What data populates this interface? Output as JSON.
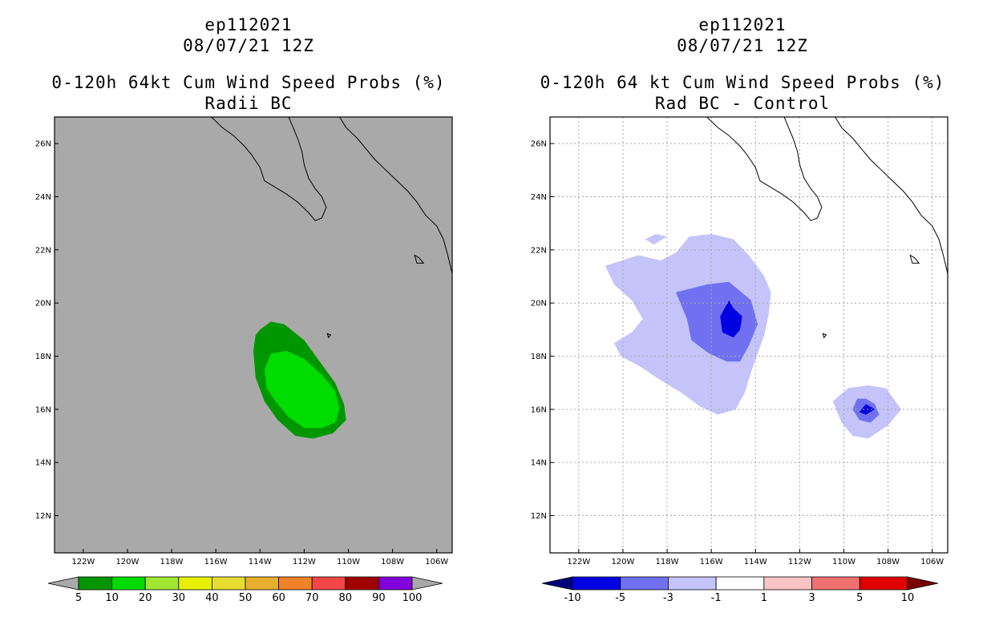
{
  "colors": {
    "left_bg": "#a9a9a9",
    "prob_10": "#009600",
    "prob_20": "#00dc00",
    "diff_weak": "#c4c4fa",
    "diff_mid": "#7070f0",
    "diff_strong": "#0000e0",
    "coast": "#000000",
    "grid": "#a8a8a8"
  },
  "chart_data": [
    {
      "type": "contour-map",
      "title_line1": "ep112021",
      "title_line2": "08/07/21 12Z",
      "title_line3": "0-120h 64kt Cum Wind Speed Probs (%)",
      "title_line4": "Radii BC",
      "xlim": [
        -123.3,
        -105.3
      ],
      "ylim": [
        10.6,
        27.0
      ],
      "x_ticks": [
        -122,
        -120,
        -118,
        -116,
        -114,
        -112,
        -110,
        -108,
        -106
      ],
      "x_tick_labels": [
        "122W",
        "120W",
        "118W",
        "116W",
        "114W",
        "112W",
        "110W",
        "108W",
        "106W"
      ],
      "y_ticks": [
        12,
        14,
        16,
        18,
        20,
        22,
        24,
        26
      ],
      "y_tick_labels": [
        "12N",
        "14N",
        "16N",
        "18N",
        "20N",
        "22N",
        "24N",
        "26N"
      ],
      "grid": false,
      "contours": [
        {
          "level": "5-10",
          "color": "#009600",
          "polygon": [
            [
              -114.0,
              19.0
            ],
            [
              -113.5,
              19.3
            ],
            [
              -112.9,
              19.2
            ],
            [
              -112.0,
              18.6
            ],
            [
              -111.3,
              17.8
            ],
            [
              -110.6,
              17.0
            ],
            [
              -110.2,
              16.2
            ],
            [
              -110.1,
              15.6
            ],
            [
              -110.7,
              15.1
            ],
            [
              -111.6,
              14.9
            ],
            [
              -112.4,
              15.0
            ],
            [
              -113.2,
              15.6
            ],
            [
              -113.8,
              16.3
            ],
            [
              -114.2,
              17.2
            ],
            [
              -114.3,
              18.2
            ],
            [
              -114.2,
              18.8
            ]
          ]
        },
        {
          "level": "10-20",
          "color": "#00dc00",
          "polygon": [
            [
              -113.5,
              18.1
            ],
            [
              -112.8,
              18.2
            ],
            [
              -112.0,
              17.9
            ],
            [
              -111.2,
              17.3
            ],
            [
              -110.6,
              16.7
            ],
            [
              -110.4,
              16.0
            ],
            [
              -110.6,
              15.5
            ],
            [
              -111.2,
              15.3
            ],
            [
              -112.0,
              15.3
            ],
            [
              -112.7,
              15.7
            ],
            [
              -113.3,
              16.3
            ],
            [
              -113.7,
              16.8
            ],
            [
              -113.8,
              17.5
            ]
          ]
        }
      ],
      "colorbar": {
        "labels": [
          "5",
          "10",
          "20",
          "30",
          "40",
          "50",
          "60",
          "70",
          "80",
          "90",
          "100"
        ],
        "colors": [
          "#009600",
          "#00dc00",
          "#a0e632",
          "#e6f000",
          "#e6dc32",
          "#e6af2d",
          "#f08228",
          "#f04646",
          "#a00000",
          "#8200dc"
        ],
        "under": "#a9a9a9",
        "over": "#a9a9a9"
      }
    },
    {
      "type": "contour-map",
      "title_line1": "ep112021",
      "title_line2": "08/07/21 12Z",
      "title_line3": "0-120h 64 kt Cum Wind Speed Probs (%)",
      "title_line4": "Rad BC - Control",
      "xlim": [
        -123.3,
        -105.3
      ],
      "ylim": [
        10.6,
        27.0
      ],
      "x_ticks": [
        -122,
        -120,
        -118,
        -116,
        -114,
        -112,
        -110,
        -108,
        -106
      ],
      "x_tick_labels": [
        "122W",
        "120W",
        "118W",
        "116W",
        "114W",
        "112W",
        "110W",
        "108W",
        "106W"
      ],
      "y_ticks": [
        12,
        14,
        16,
        18,
        20,
        22,
        24,
        26
      ],
      "y_tick_labels": [
        "12N",
        "14N",
        "16N",
        "18N",
        "20N",
        "22N",
        "24N",
        "26N"
      ],
      "grid": true,
      "contours": [
        {
          "level": "-3 to -1",
          "color": "#c4c4fa",
          "polygon": [
            [
              -117.6,
              21.9
            ],
            [
              -117.0,
              22.5
            ],
            [
              -116.0,
              22.6
            ],
            [
              -115.0,
              22.4
            ],
            [
              -114.3,
              21.8
            ],
            [
              -113.6,
              21.0
            ],
            [
              -113.3,
              20.4
            ],
            [
              -113.4,
              19.6
            ],
            [
              -113.6,
              18.8
            ],
            [
              -113.9,
              18.1
            ],
            [
              -114.2,
              17.4
            ],
            [
              -114.5,
              16.6
            ],
            [
              -114.9,
              16.0
            ],
            [
              -115.7,
              15.8
            ],
            [
              -116.5,
              16.1
            ],
            [
              -117.3,
              16.6
            ],
            [
              -118.3,
              17.1
            ],
            [
              -119.2,
              17.6
            ],
            [
              -120.1,
              18.0
            ],
            [
              -120.4,
              18.5
            ],
            [
              -119.6,
              18.9
            ],
            [
              -119.1,
              19.4
            ],
            [
              -119.6,
              20.1
            ],
            [
              -120.4,
              20.7
            ],
            [
              -120.8,
              21.4
            ],
            [
              -119.3,
              21.8
            ],
            [
              -118.3,
              21.6
            ]
          ]
        },
        {
          "level": "-3 to -1 (small)",
          "color": "#c4c4fa",
          "polygon": [
            [
              -119.0,
              22.4
            ],
            [
              -118.5,
              22.6
            ],
            [
              -118.0,
              22.5
            ],
            [
              -118.6,
              22.2
            ]
          ]
        },
        {
          "level": "-3 to -1 (south)",
          "color": "#c4c4fa",
          "polygon": [
            [
              -108.9,
              16.9
            ],
            [
              -108.1,
              16.8
            ],
            [
              -107.4,
              16.0
            ],
            [
              -108.0,
              15.4
            ],
            [
              -108.9,
              14.9
            ],
            [
              -109.6,
              15.0
            ],
            [
              -110.1,
              15.5
            ],
            [
              -110.5,
              16.3
            ],
            [
              -109.8,
              16.8
            ]
          ]
        },
        {
          "level": "-5 to -3",
          "color": "#7070f0",
          "polygon": [
            [
              -116.2,
              20.7
            ],
            [
              -115.2,
              20.8
            ],
            [
              -114.2,
              20.1
            ],
            [
              -113.9,
              19.2
            ],
            [
              -114.3,
              18.4
            ],
            [
              -114.7,
              17.8
            ],
            [
              -115.3,
              17.8
            ],
            [
              -116.1,
              18.1
            ],
            [
              -116.9,
              18.6
            ],
            [
              -117.1,
              19.4
            ],
            [
              -117.6,
              20.4
            ]
          ]
        },
        {
          "level": "-5 to -3 (south)",
          "color": "#7070f0",
          "polygon": [
            [
              -109.0,
              16.4
            ],
            [
              -108.6,
              16.2
            ],
            [
              -108.4,
              15.8
            ],
            [
              -108.8,
              15.5
            ],
            [
              -109.3,
              15.6
            ],
            [
              -109.6,
              16.0
            ],
            [
              -109.4,
              16.4
            ]
          ]
        },
        {
          "level": "-10 to -5",
          "color": "#0000e0",
          "polygon": [
            [
              -115.2,
              20.1
            ],
            [
              -115.0,
              19.8
            ],
            [
              -114.6,
              19.5
            ],
            [
              -114.7,
              19.0
            ],
            [
              -115.0,
              18.7
            ],
            [
              -115.5,
              18.9
            ],
            [
              -115.6,
              19.5
            ]
          ]
        },
        {
          "level": "-10 to -5 (south)",
          "color": "#0000e0",
          "polygon": [
            [
              -109.0,
              16.2
            ],
            [
              -108.6,
              16.0
            ],
            [
              -109.0,
              15.8
            ],
            [
              -109.3,
              15.9
            ]
          ]
        }
      ],
      "colorbar": {
        "labels": [
          "-10",
          "-5",
          "-3",
          "-1",
          "1",
          "3",
          "5",
          "10"
        ],
        "colors": [
          "#0000e0",
          "#7070f0",
          "#c4c4fa",
          "#ffffff",
          "#fac4c4",
          "#f07070",
          "#e00000"
        ],
        "under": "#00007a",
        "over": "#7a0000"
      }
    }
  ]
}
